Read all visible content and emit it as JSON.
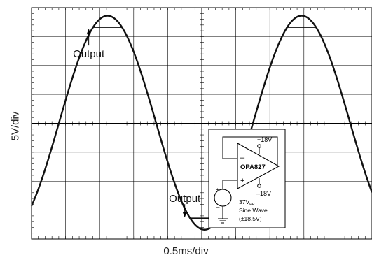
{
  "chart_data": {
    "type": "line",
    "xlabel": "0.5ms/div",
    "ylabel": "5V/div",
    "x_divisions": 10,
    "y_divisions": 8,
    "grid": true,
    "xlim": [
      0,
      5.0
    ],
    "x_unit": "ms",
    "ylim": [
      -20,
      20
    ],
    "y_unit": "V",
    "series": [
      {
        "role": "input",
        "waveform": "sine",
        "amplitude": 18.5,
        "period": 2.85,
        "phase_deg": -51,
        "dc_offset": 0.1
      },
      {
        "role": "output",
        "waveform": "clipped sine",
        "amplitude": 18.5,
        "period": 2.85,
        "phase_deg": -51,
        "dc_offset": 0.1,
        "clip_high": 16.6,
        "clip_low": -16.4
      }
    ],
    "annotations": [
      {
        "text": "Output",
        "at_x": 0.84,
        "at_y": 16.6,
        "position": "below",
        "arrow": "up"
      },
      {
        "text": "Output",
        "at_x": 2.25,
        "at_y": -16.4,
        "position": "above",
        "arrow": "down"
      }
    ]
  },
  "inset": {
    "supply_pos": "+18V",
    "supply_neg": "–18V",
    "amp_name": "OPA827",
    "minus_sign": "–",
    "plus_sign": "+",
    "src_plus": "+",
    "src_minus": "–",
    "src_amp_value": "37V",
    "src_amp_sub": "PP",
    "src_desc1": "Sine Wave",
    "src_desc2": "(±18.5V)"
  }
}
